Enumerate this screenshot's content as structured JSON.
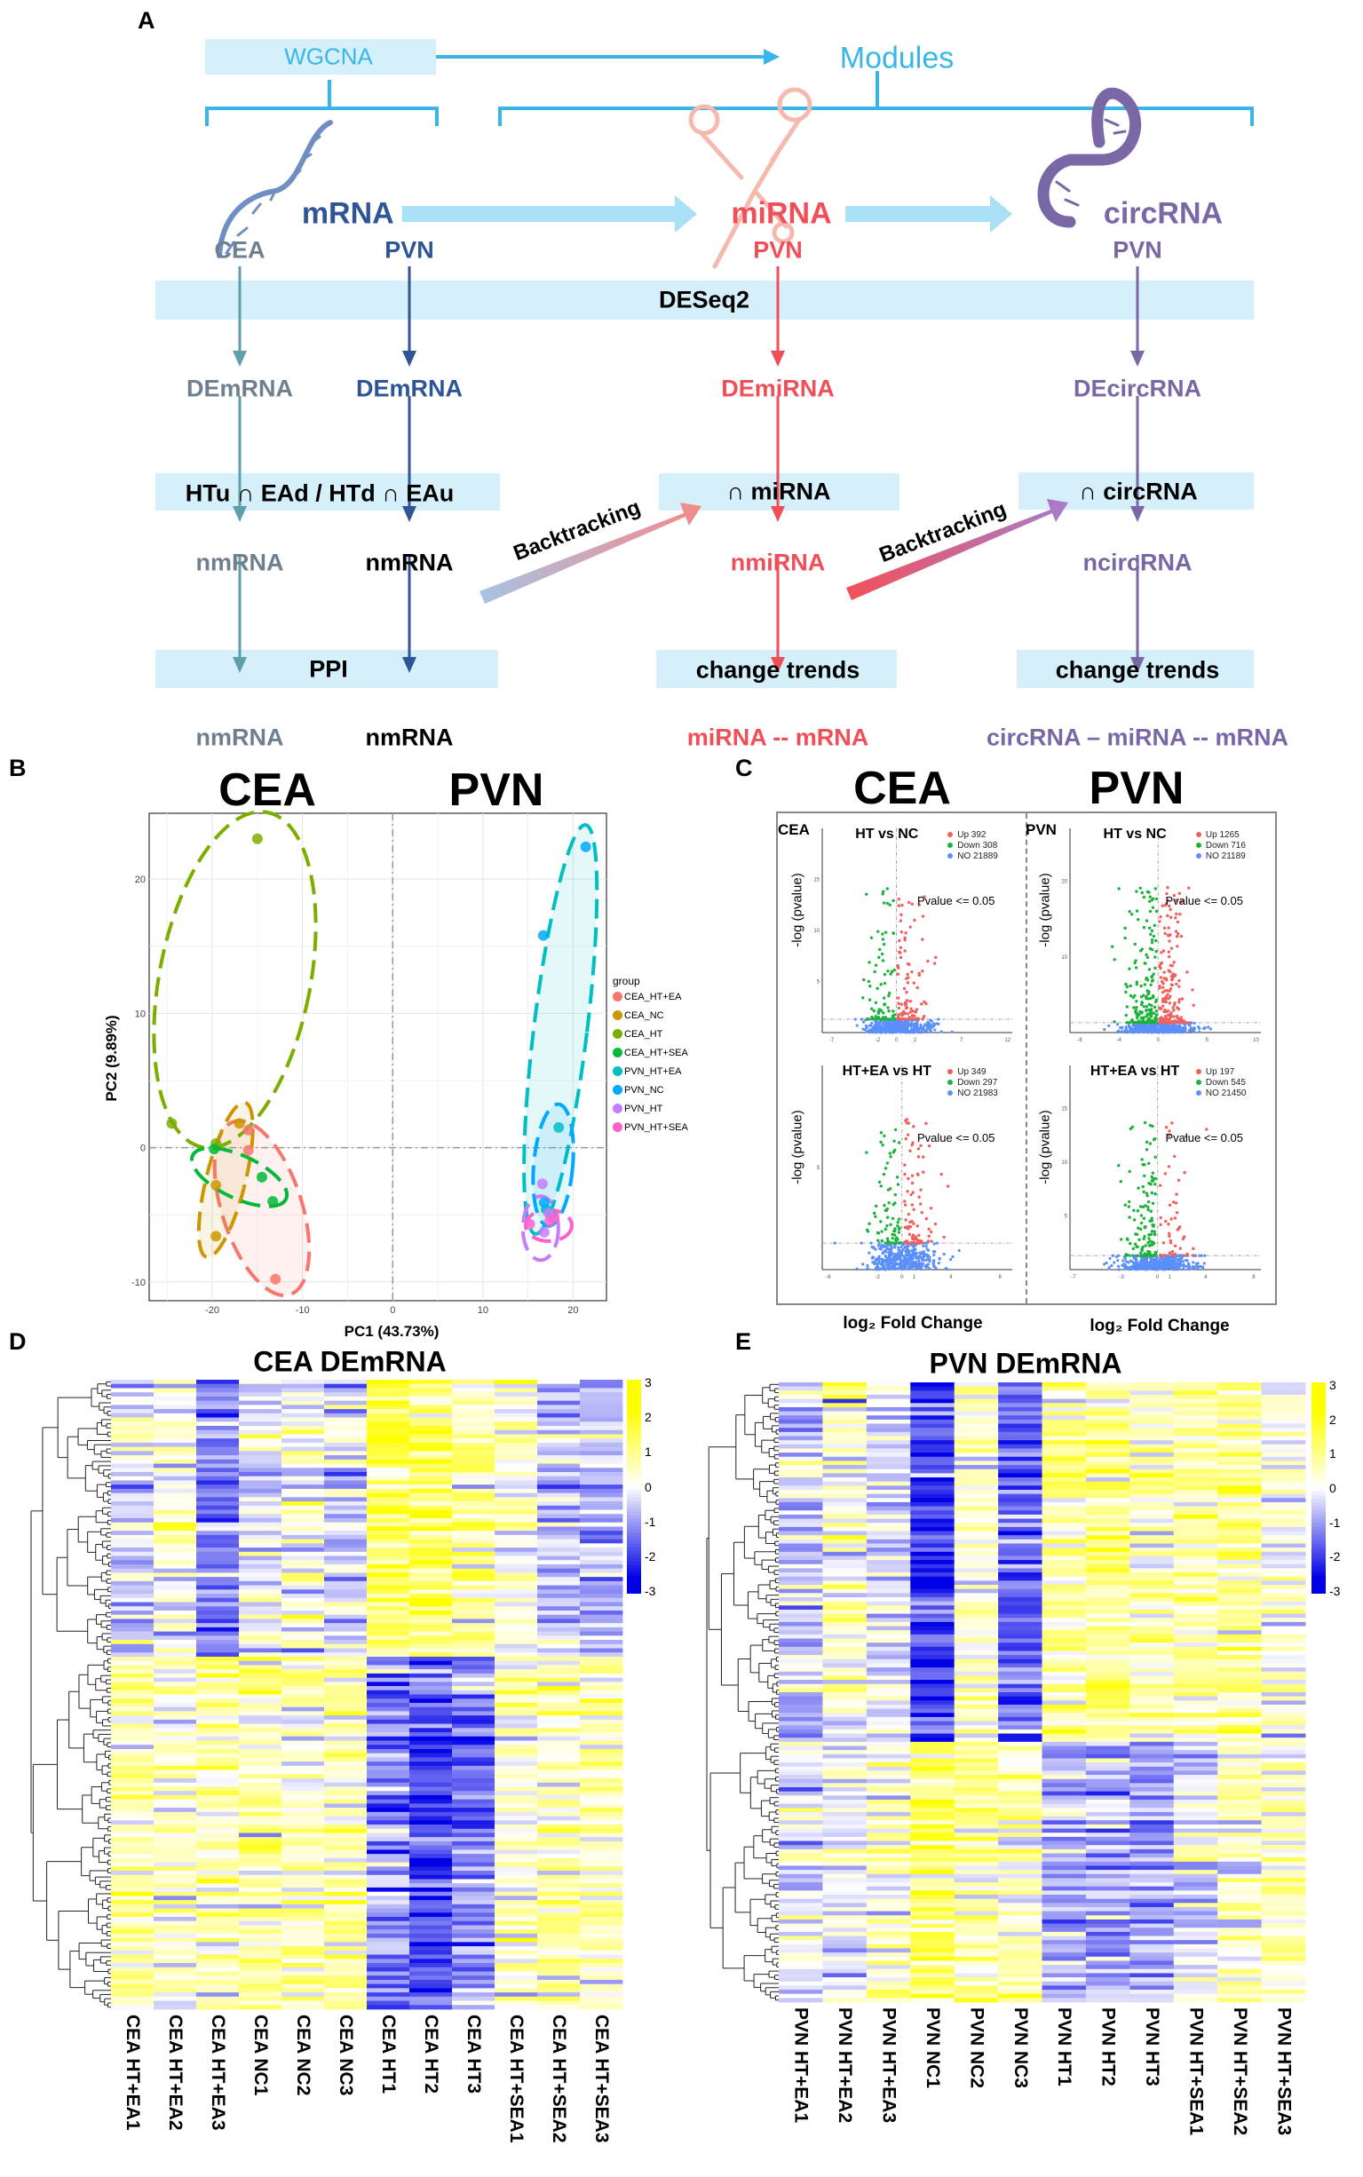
{
  "panelA": {
    "label": "A",
    "wgcna": "WGCNA",
    "modules": "Modules",
    "mrna": "mRNA",
    "mirna": "miRNA",
    "circrna": "circRNA",
    "cea": "CEA",
    "pvn": "PVN",
    "deseq2": "DESeq2",
    "demrna": "DEmRNA",
    "demirna": "DEmiRNA",
    "decircrna": "DEcircRNA",
    "intersect": "HTu ∩ EAd / HTd ∩ EAu",
    "cap_mirna": "∩ miRNA",
    "cap_circrna": "∩ circRNA",
    "nmrna": "nmRNA",
    "nmirna": "nmiRNA",
    "ncircrna": "ncircRNA",
    "backtracking": "Backtracking",
    "ppi": "PPI",
    "change_trends": "change trends",
    "out_mirna": "miRNA -- mRNA",
    "out_circ": "circRNA – miRNA -- mRNA",
    "colors": {
      "cea": "#5E9FA9",
      "pvn_mrna": "#2F5597",
      "mirna": "#F04F57",
      "circrna": "#7A67A6",
      "band": "#D6F0FB",
      "wgcna": "#38B6E8"
    }
  },
  "panelB": {
    "label": "B",
    "title_left": "CEA",
    "title_right": "PVN"
  },
  "panelC": {
    "label": "C",
    "title_left": "CEA",
    "title_right": "PVN",
    "xlabel": "log₂ Fold Change",
    "pvalue": "Pvalue <= 0.05",
    "ylabel": "-log (pvalue)"
  },
  "panelD": {
    "label": "D",
    "title": "CEA DEmRNA"
  },
  "panelE": {
    "label": "E",
    "title": "PVN DEmRNA"
  },
  "chart_data": [
    {
      "id": "pca",
      "type": "scatter",
      "xlabel": "PC1 (43.73%)",
      "ylabel": "PC2 (9.89%)",
      "xlim": [
        -27,
        23.7
      ],
      "ylim": [
        -11.4,
        24.9
      ],
      "xticks": [
        -20,
        -10,
        0,
        10,
        20
      ],
      "yticks": [
        -10,
        0,
        10,
        20
      ],
      "grid": true,
      "legend_title": "group",
      "legend_position": "right",
      "series": [
        {
          "name": "CEA_HT+EA",
          "color": "#F8766D",
          "points": [
            [
              -16,
              1.3
            ],
            [
              -16,
              -0.2
            ],
            [
              -13,
              -9.8
            ]
          ]
        },
        {
          "name": "CEA_NC",
          "color": "#CD9600",
          "points": [
            [
              -17,
              1.8
            ],
            [
              -19.6,
              -2.8
            ],
            [
              -19.6,
              -6.6
            ]
          ]
        },
        {
          "name": "CEA_HT",
          "color": "#7CAE00",
          "points": [
            [
              -15,
              23
            ],
            [
              -24.5,
              1.8
            ],
            [
              -19.6,
              0.3
            ]
          ]
        },
        {
          "name": "CEA_HT+SEA",
          "color": "#00BA38",
          "points": [
            [
              -14.5,
              -2.2
            ],
            [
              -13.3,
              -4
            ],
            [
              -19.8,
              -0.1
            ]
          ]
        },
        {
          "name": "PVN_HT+EA",
          "color": "#00BFC4",
          "points": [
            [
              18.4,
              1.5
            ],
            [
              17,
              -4.6
            ],
            [
              17.6,
              -5
            ]
          ]
        },
        {
          "name": "PVN_NC",
          "color": "#00A9FF",
          "points": [
            [
              21.4,
              22.4
            ],
            [
              16.7,
              15.8
            ],
            [
              16.8,
              -4.1
            ]
          ]
        },
        {
          "name": "PVN_HT",
          "color": "#C77CFF",
          "points": [
            [
              16.6,
              -2.7
            ],
            [
              16.8,
              -6.3
            ],
            [
              17.3,
              -4.9
            ]
          ]
        },
        {
          "name": "PVN_HT+SEA",
          "color": "#FF61CC",
          "points": [
            [
              15.2,
              -5.7
            ],
            [
              17.9,
              -5.2
            ],
            [
              17.4,
              -5.5
            ]
          ]
        }
      ]
    },
    {
      "id": "volcano-cea-1",
      "type": "scatter",
      "region": "CEA",
      "title": "HT vs NC",
      "up": "Up 392",
      "down": "Down 308",
      "no": "NO 21889",
      "n_up": 392,
      "n_down": 308,
      "n_no": 21889,
      "xlim": [
        -8,
        12.5
      ],
      "ylim": [
        0,
        20
      ],
      "xticks": [
        -7,
        -2,
        0,
        2,
        7,
        12
      ],
      "yticks": [
        5,
        10,
        15
      ],
      "threshold": 1.3
    },
    {
      "id": "volcano-pvn-1",
      "type": "scatter",
      "region": "PVN",
      "title": "HT vs NC",
      "up": "Up 1265",
      "down": "Down 716",
      "no": "NO 21189",
      "n_up": 1265,
      "n_down": 716,
      "n_no": 21189,
      "xlim": [
        -9,
        10.5
      ],
      "ylim": [
        0,
        27
      ],
      "xticks": [
        -8,
        -4,
        0,
        5,
        10
      ],
      "yticks": [
        10,
        20
      ],
      "threshold": 1.3
    },
    {
      "id": "volcano-cea-2",
      "type": "scatter",
      "region": "",
      "title": "HT+EA vs HT",
      "up": "Up 349",
      "down": "Down 297",
      "no": "NO 21983",
      "n_up": 349,
      "n_down": 297,
      "n_no": 21983,
      "xlim": [
        -6.5,
        9
      ],
      "ylim": [
        0,
        10
      ],
      "xticks": [
        -6,
        -2,
        0,
        1,
        4,
        8
      ],
      "yticks": [
        5
      ],
      "threshold": 1.3
    },
    {
      "id": "volcano-pvn-2",
      "type": "scatter",
      "region": "",
      "title": "HT+EA vs HT",
      "up": "Up 197",
      "down": "Down 545",
      "no": "NO 21450",
      "n_up": 197,
      "n_down": 545,
      "n_no": 21450,
      "xlim": [
        -7.3,
        8.6
      ],
      "ylim": [
        0,
        19
      ],
      "xticks": [
        -7,
        -3,
        0,
        1,
        4,
        8
      ],
      "yticks": [
        5,
        10,
        15
      ],
      "threshold": 1.3
    },
    {
      "id": "heatmap-cea",
      "type": "heatmap",
      "title": "CEA DEmRNA",
      "columns": [
        "CEA HT+EA1",
        "CEA HT+EA2",
        "CEA HT+EA3",
        "CEA NC1",
        "CEA NC2",
        "CEA NC3",
        "CEA HT1",
        "CEA HT2",
        "CEA HT3",
        "CEA HT+SEA1",
        "CEA HT+SEA2",
        "CEA HT+SEA3"
      ],
      "colorbar_ticks": [
        3,
        2,
        1,
        0,
        -1,
        -2,
        -3
      ],
      "range": [
        -3,
        3
      ],
      "rows": 150,
      "cluster_split": 0.44,
      "column_means_top": [
        -0.3,
        0.2,
        -1.2,
        -0.2,
        0.1,
        -0.4,
        1.3,
        1.5,
        0.8,
        0.3,
        -0.6,
        -0.8
      ],
      "column_means_bottom": [
        0.6,
        0.4,
        0.8,
        0.7,
        0.4,
        0.6,
        -1.3,
        -1.8,
        -1.3,
        0.4,
        0.5,
        0.5
      ]
    },
    {
      "id": "heatmap-pvn",
      "type": "heatmap",
      "title": "PVN DEmRNA",
      "columns": [
        "PVN HT+EA1",
        "PVN HT+EA2",
        "PVN HT+EA3",
        "PVN NC1",
        "PVN NC2",
        "PVN NC3",
        "PVN HT1",
        "PVN HT2",
        "PVN HT3",
        "PVN HT+SEA1",
        "PVN HT+SEA2",
        "PVN HT+SEA3"
      ],
      "colorbar_ticks": [
        3,
        2,
        1,
        0,
        -1,
        -2,
        -3
      ],
      "range": [
        -3,
        3
      ],
      "rows": 150,
      "cluster_split": 0.58,
      "column_means_top": [
        -0.5,
        0.2,
        -0.3,
        -2.0,
        0.4,
        -1.5,
        0.7,
        0.9,
        0.5,
        0.6,
        0.9,
        0.2
      ],
      "column_means_bottom": [
        -0.3,
        -0.2,
        0.3,
        1.2,
        0.6,
        0.5,
        -0.9,
        -0.7,
        -1.0,
        -0.3,
        0.2,
        0.4
      ]
    }
  ]
}
